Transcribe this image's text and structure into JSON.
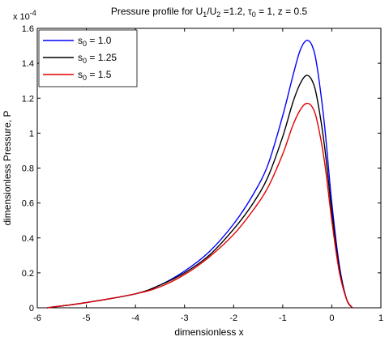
{
  "chart_data": {
    "type": "line",
    "title": {
      "prefix": "Pressure profile for U",
      "sub1": "1",
      "mid": "/U",
      "sub2": "2",
      "mid2": " =1.2, ",
      "tau": "τ",
      "sub3": "0",
      "suffix": " = 1, z = 0.5"
    },
    "xlabel": "dimensionless x",
    "ylabel": "dimensionless Pressure, P",
    "y_multiplier": "x 10",
    "y_multiplier_exp": "-4",
    "xlim": [
      -6,
      1
    ],
    "ylim": [
      0,
      1.6
    ],
    "xticks": [
      "-6",
      "-5",
      "-4",
      "-3",
      "-2",
      "-1",
      "0",
      "1"
    ],
    "yticks": [
      "0",
      "0.2",
      "0.4",
      "0.6",
      "0.8",
      "1",
      "1.2",
      "1.4",
      "1.6"
    ],
    "legend_position": "top-left",
    "series": [
      {
        "name": "s",
        "name_sub": "0",
        "name_suffix": " = 1.0",
        "color": "#0000ff",
        "x": [
          -5.8,
          -5.0,
          -4.0,
          -3.5,
          -3.0,
          -2.5,
          -2.0,
          -1.6,
          -1.3,
          -1.0,
          -0.8,
          -0.65,
          -0.52,
          -0.4,
          -0.3,
          -0.15,
          0.0,
          0.15,
          0.3,
          0.42
        ],
        "y": [
          0.0,
          0.03,
          0.08,
          0.13,
          0.21,
          0.32,
          0.48,
          0.65,
          0.82,
          1.1,
          1.32,
          1.47,
          1.53,
          1.5,
          1.38,
          1.05,
          0.6,
          0.25,
          0.05,
          0.0
        ]
      },
      {
        "name": "s",
        "name_sub": "0",
        "name_suffix": " = 1.25",
        "color": "#000000",
        "x": [
          -5.8,
          -5.0,
          -4.0,
          -3.5,
          -3.0,
          -2.5,
          -2.0,
          -1.6,
          -1.3,
          -1.0,
          -0.8,
          -0.65,
          -0.52,
          -0.4,
          -0.3,
          -0.15,
          0.0,
          0.15,
          0.3,
          0.42
        ],
        "y": [
          0.0,
          0.03,
          0.08,
          0.13,
          0.2,
          0.3,
          0.45,
          0.6,
          0.75,
          0.98,
          1.17,
          1.28,
          1.33,
          1.3,
          1.2,
          0.93,
          0.55,
          0.23,
          0.05,
          0.0
        ]
      },
      {
        "name": "s",
        "name_sub": "0",
        "name_suffix": " = 1.5",
        "color": "#e00000",
        "x": [
          -5.8,
          -5.0,
          -4.0,
          -3.5,
          -3.0,
          -2.5,
          -2.0,
          -1.6,
          -1.3,
          -1.0,
          -0.8,
          -0.65,
          -0.52,
          -0.4,
          -0.3,
          -0.15,
          0.0,
          0.15,
          0.3,
          0.42
        ],
        "y": [
          0.0,
          0.03,
          0.08,
          0.12,
          0.19,
          0.29,
          0.42,
          0.56,
          0.69,
          0.88,
          1.04,
          1.13,
          1.17,
          1.15,
          1.07,
          0.84,
          0.5,
          0.21,
          0.05,
          0.0
        ]
      }
    ]
  }
}
